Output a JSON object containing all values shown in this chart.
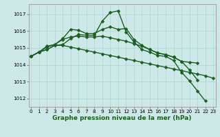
{
  "background_color": "#cce9e7",
  "grid_color": "#add4d2",
  "line_color": "#1a5e20",
  "markersize": 2.5,
  "linewidth": 1.0,
  "x": [
    0,
    1,
    2,
    3,
    4,
    5,
    6,
    7,
    8,
    9,
    10,
    11,
    12,
    13,
    14,
    15,
    16,
    17,
    18,
    19,
    20,
    21,
    22,
    23
  ],
  "series": [
    [
      1014.5,
      1014.75,
      1014.9,
      1015.15,
      1015.15,
      1015.05,
      1014.95,
      1014.85,
      1014.75,
      1014.65,
      1014.55,
      1014.45,
      1014.35,
      1014.25,
      1014.15,
      1014.05,
      1013.95,
      1013.85,
      1013.75,
      1013.65,
      1013.55,
      1013.45,
      1013.35,
      1013.2
    ],
    [
      1014.5,
      1014.75,
      1014.9,
      1015.15,
      1015.2,
      1015.55,
      1015.8,
      1015.75,
      1015.75,
      1016.6,
      1017.1,
      1017.2,
      1015.95,
      1015.35,
      1014.9,
      1014.75,
      1014.55,
      1014.5,
      1014.25,
      1013.55,
      1013.05,
      1012.45,
      1011.85,
      null
    ],
    [
      1014.5,
      1014.75,
      1015.1,
      1015.2,
      1015.55,
      1016.1,
      1016.05,
      1015.85,
      1015.85,
      1016.1,
      1016.25,
      1016.1,
      1016.15,
      1015.5,
      1015.15,
      1014.9,
      1014.7,
      1014.6,
      1014.45,
      1014.2,
      1014.15,
      1014.1,
      null,
      null
    ],
    [
      1014.5,
      1014.75,
      1015.05,
      1015.2,
      1015.5,
      1015.65,
      1015.7,
      1015.65,
      1015.65,
      1015.7,
      1015.6,
      1015.5,
      1015.4,
      1015.25,
      1015.1,
      1014.9,
      1014.7,
      1014.6,
      1014.45,
      1014.2,
      1013.7,
      1013.1,
      null,
      null
    ]
  ],
  "ylim": [
    1011.5,
    1017.6
  ],
  "yticks": [
    1012,
    1013,
    1014,
    1015,
    1016,
    1017
  ],
  "xlim": [
    -0.3,
    23.3
  ],
  "xlabel": "Graphe pression niveau de la mer (hPa)",
  "xlabel_fontsize": 6.5,
  "tick_fontsize": 5.2
}
